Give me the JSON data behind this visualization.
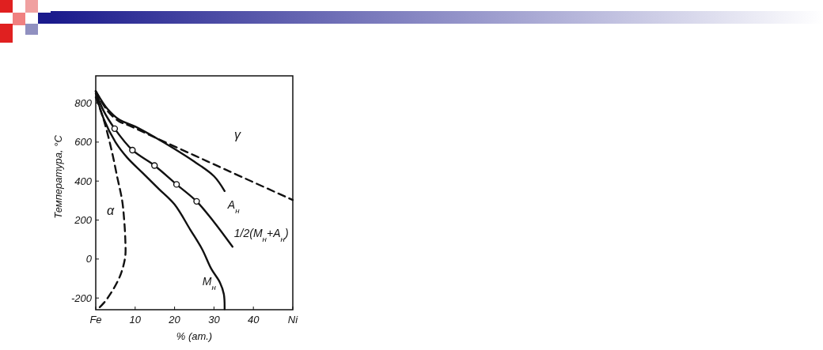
{
  "chart_data": {
    "type": "line",
    "xlabel": "% (ат.)",
    "ylabel": "Температура, °С",
    "xlim": [
      0,
      50
    ],
    "ylim": [
      -260,
      940
    ],
    "xticks": [
      {
        "value": 0,
        "label": "Fe"
      },
      10,
      20,
      30,
      40,
      {
        "value": 50,
        "label": "Ni"
      }
    ],
    "yticks": [
      -200,
      0,
      200,
      400,
      600,
      800
    ],
    "series": [
      {
        "color": "#111111",
        "line_style": "dashed",
        "x": [
          0,
          3,
          6,
          8,
          15,
          25,
          35,
          50
        ],
        "values": [
          862,
          760,
          705,
          689,
          624,
          532,
          440,
          303
        ]
      },
      {
        "name": "A$_{н}$",
        "color": "#111111",
        "line_style": "solid",
        "x": [
          0,
          3,
          6,
          10,
          15,
          20,
          25,
          30,
          32.7
        ],
        "values": [
          862,
          770,
          715,
          680,
          625,
          565,
          500,
          425,
          349
        ]
      },
      {
        "name": "1/2(M$_{н}$+A$_{н}$)",
        "color": "#111111",
        "line_style": "solid",
        "x": [
          0,
          2,
          4.8,
          9.3,
          14.9,
          20.5,
          25.6,
          30,
          34.7
        ],
        "values": [
          860,
          760,
          669,
          559,
          480,
          383,
          296,
          190,
          63
        ]
      },
      {
        "type": "scatter",
        "color": "#111111",
        "marker": "circle",
        "x": [
          4.8,
          9.3,
          14.9,
          20.5,
          25.6
        ],
        "values": [
          669,
          559,
          480,
          383,
          296
        ]
      },
      {
        "name": "M$_{н}$",
        "color": "#111111",
        "line_style": "solid",
        "x": [
          0,
          2,
          5,
          8,
          12,
          16,
          20,
          24,
          27,
          29.3,
          31.5,
          32.5,
          32.7
        ],
        "values": [
          850,
          720,
          600,
          520,
          440,
          360,
          280,
          150,
          50,
          -50,
          -120,
          -180,
          -257
        ]
      },
      {
        "color": "#111111",
        "line_style": "dashed",
        "x": [
          0,
          2,
          4,
          5.5,
          6.7,
          7.2,
          7.5,
          7.5,
          6.8,
          5.8,
          4,
          2.1,
          0.5
        ],
        "values": [
          830,
          716,
          560,
          416,
          300,
          203,
          100,
          16,
          -50,
          -104,
          -170,
          -224,
          -257
        ]
      }
    ],
    "annotations": [
      "γ",
      "α"
    ]
  }
}
